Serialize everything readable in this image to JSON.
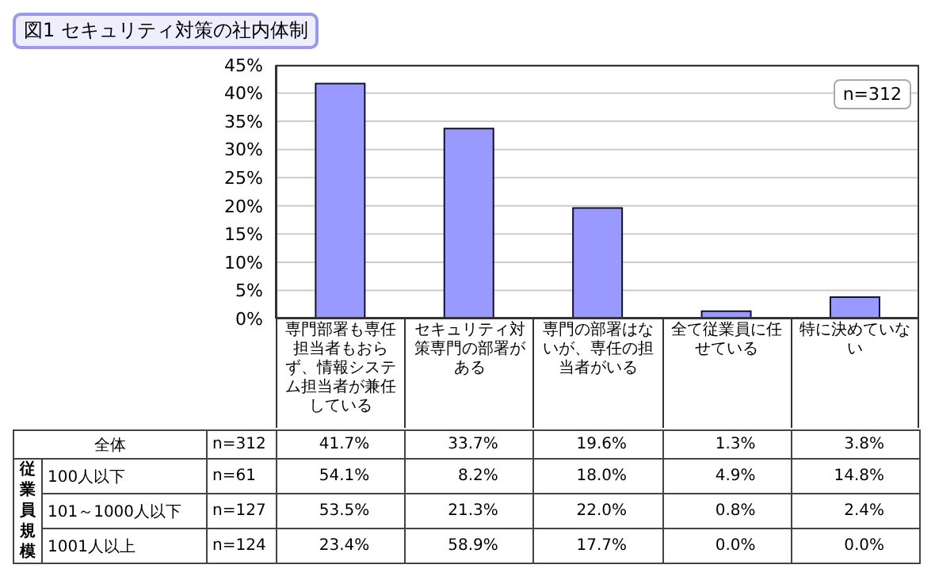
{
  "chart_data": [
    {
      "type": "bar",
      "title": "図1 セキュリティ対策の社内体制",
      "categories": [
        "専門部署も専任担当者もおらず、情報システム担当者が兼任している",
        "セキュリティ対策専門の部署がある",
        "専門の部署はないが、専任の担当者がいる",
        "全て従業員に任せている",
        "特に決めていない"
      ],
      "values": [
        41.7,
        33.7,
        19.6,
        1.3,
        3.8
      ],
      "color": "#9999ff",
      "ylim": [
        0,
        45
      ],
      "yticks": [
        {
          "value": 0,
          "label": "0%"
        },
        {
          "value": 5,
          "label": "5%"
        },
        {
          "value": 10,
          "label": "10%"
        },
        {
          "value": 15,
          "label": "15%"
        },
        {
          "value": 20,
          "label": "20%"
        },
        {
          "value": 25,
          "label": "25%"
        },
        {
          "value": 30,
          "label": "30%"
        },
        {
          "value": 35,
          "label": "35%"
        },
        {
          "value": 40,
          "label": "40%"
        },
        {
          "value": 45,
          "label": "45%"
        }
      ],
      "grid": "y",
      "annotations": [
        "n=312"
      ]
    },
    {
      "type": "other",
      "title": "従業員規模",
      "y_categories": [
        "全体",
        "100人以下",
        "101～1000人以下",
        "1001人以上"
      ],
      "y2_categories": [
        "n=312",
        "n=61",
        "n=127",
        "n=124"
      ],
      "cell_labels": [
        [
          "41.7%",
          "33.7%",
          "19.6%",
          "1.3%",
          "3.8%"
        ],
        [
          "54.1%",
          "8.2%",
          "18.0%",
          "4.9%",
          "14.8%"
        ],
        [
          "53.5%",
          "21.3%",
          "22.0%",
          "0.8%",
          "2.4%"
        ],
        [
          "23.4%",
          "58.9%",
          "17.7%",
          "0.0%",
          "0.0%"
        ]
      ]
    }
  ]
}
